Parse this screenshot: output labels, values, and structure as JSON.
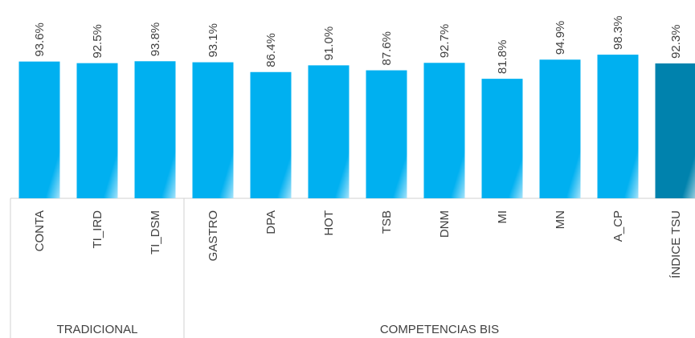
{
  "chart_data": {
    "type": "bar",
    "categories": [
      "CONTA",
      "TI_IRD",
      "TI_DSM",
      "GASTRO",
      "DPA",
      "HOT",
      "TSB",
      "DNM",
      "MI",
      "MN",
      "A_CP",
      "ÍNDICE TSU"
    ],
    "values": [
      93.6,
      92.5,
      93.8,
      93.1,
      86.4,
      91.0,
      87.6,
      92.7,
      81.8,
      94.9,
      98.3,
      92.3
    ],
    "value_labels": [
      "93.6%",
      "92.5%",
      "93.8%",
      "93.1%",
      "86.4%",
      "91.0%",
      "87.6%",
      "92.7%",
      "81.8%",
      "94.9%",
      "98.3%",
      "92.3%"
    ],
    "colors": [
      "#00b0f0",
      "#00b0f0",
      "#00b0f0",
      "#00b0f0",
      "#00b0f0",
      "#00b0f0",
      "#00b0f0",
      "#00b0f0",
      "#00b0f0",
      "#00b0f0",
      "#00b0f0",
      "#0082ad"
    ],
    "groups": [
      {
        "label": "TRADICIONAL",
        "span": 3
      },
      {
        "label": "COMPETENCIAS BIS",
        "span": 9
      }
    ],
    "ylim": [
      0,
      100
    ]
  }
}
